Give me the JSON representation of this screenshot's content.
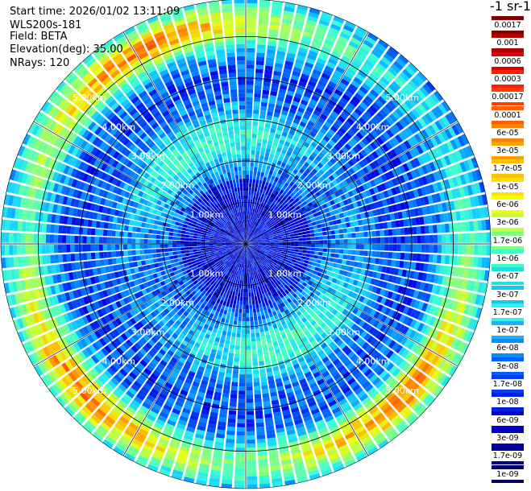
{
  "header": {
    "start_time": "Start time: 2026/01/02 13:11:09",
    "instrument": "WLS200s-181",
    "field": "Field: BETA",
    "elevation": "Elevation(deg): 35.00",
    "nrays": "NRays: 120"
  },
  "colorbar": {
    "title": "-1 sr-1",
    "labels": [
      "0.0017",
      "0.001",
      "0.0006",
      "0.0003",
      "0.00017",
      "0.0001",
      "6e-05",
      "3e-05",
      "1.7e-05",
      "1e-05",
      "6e-06",
      "3e-06",
      "1.7e-06",
      "1e-06",
      "6e-07",
      "3e-07",
      "1.7e-07",
      "1e-07",
      "6e-08",
      "3e-08",
      "1.7e-08",
      "1e-08",
      "6e-09",
      "3e-09",
      "1.7e-09",
      "1e-09"
    ],
    "colors": [
      "#800000",
      "#b00000",
      "#e00000",
      "#ff2000",
      "#ff4000",
      "#ff6000",
      "#ff8000",
      "#ffa000",
      "#ffc000",
      "#ffe000",
      "#f0ff10",
      "#c0ff40",
      "#80ff80",
      "#40ffc0",
      "#20e0e0",
      "#10c8f0",
      "#30f0f0",
      "#20b0ff",
      "#0090ff",
      "#0060ff",
      "#0040f0",
      "#0020e0",
      "#0000d0",
      "#0000b0",
      "#000090",
      "#000060"
    ]
  },
  "chart_data": {
    "type": "heatmap",
    "projection": "polar PPI",
    "field": "BETA",
    "elevation_deg": 35.0,
    "n_rays": 120,
    "range_rings_km": [
      1.0,
      2.0,
      3.0,
      4.0,
      5.0
    ],
    "ring_labels": [
      "1.00km",
      "2.00km",
      "3.00km",
      "4.00km",
      "5.00km"
    ],
    "max_range_km": 5.9,
    "azimuth_lines_deg": [
      0,
      30,
      60,
      90,
      120,
      150,
      180,
      210,
      240,
      270,
      300,
      330
    ],
    "colorscale": "log",
    "value_range": [
      1e-09,
      0.0017
    ],
    "pattern": {
      "inner_core_km": [
        0.0,
        1.6
      ],
      "inner_core_level": "6e-09 to 3e-08",
      "mid_band_km": [
        1.8,
        3.2
      ],
      "mid_band_level": "1e-07 to 1.7e-07",
      "outer_band_km": [
        4.3,
        5.9
      ],
      "outer_band_level": "1e-05 to 1.7e-05",
      "outer_band_sectors_deg": [
        [
          300,
          360
        ],
        [
          200,
          250
        ],
        [
          110,
          160
        ]
      ]
    }
  }
}
